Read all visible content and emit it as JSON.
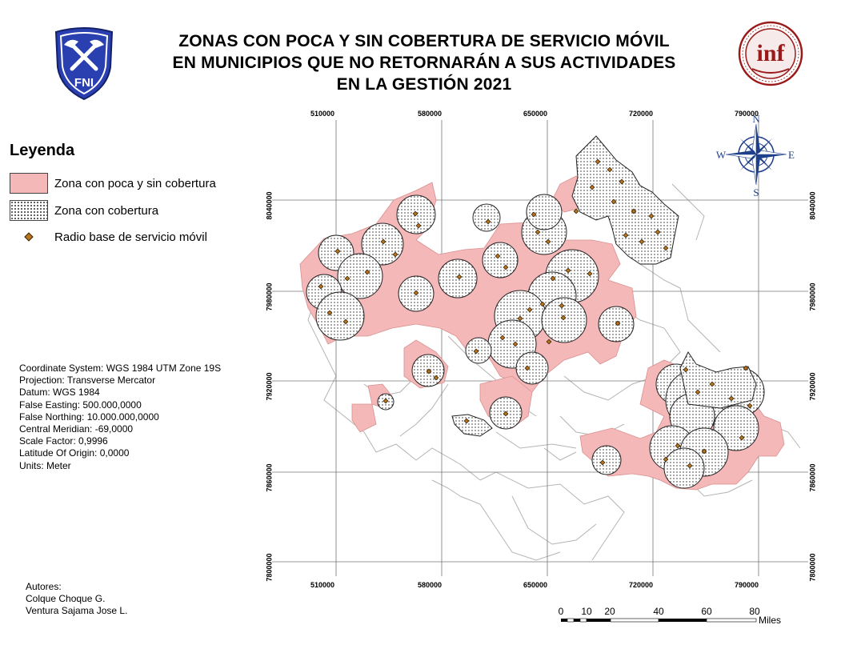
{
  "title": {
    "line1": "ZONAS CON POCA Y SIN COBERTURA DE SERVICIO MÓVIL",
    "line2": "EN MUNICIPIOS QUE NO RETORNARÁN A SUS ACTIVIDADES",
    "line3": "EN LA GESTIÓN 2021"
  },
  "logos": {
    "left_text": "FNI",
    "right_text": "inf"
  },
  "legend": {
    "title": "Leyenda",
    "items": [
      {
        "label": "Zona con poca y sin cobertura",
        "color": "#f5b8b8"
      },
      {
        "label": "Zona con cobertura",
        "pattern": "dots"
      },
      {
        "label": "Radio base de servicio móvil",
        "color": "#b8761f"
      }
    ]
  },
  "coordinate_info": [
    "Coordinate System: WGS 1984 UTM Zone 19S",
    "Projection: Transverse Mercator",
    "Datum: WGS 1984",
    "False Easting: 500.000,0000",
    "False Northing: 10.000.000,0000",
    "Central Meridian: -69,0000",
    "Scale Factor: 0,9996",
    "Latitude Of Origin: 0,0000",
    "Units: Meter"
  ],
  "authors": {
    "heading": "Autores:",
    "names": [
      "Colque Choque G.",
      "Ventura Sajama Jose  L."
    ]
  },
  "grid": {
    "eastings": [
      "510000",
      "580000",
      "650000",
      "720000",
      "790000"
    ],
    "northings": [
      "8040000",
      "7980000",
      "7920000",
      "7860000",
      "7800000"
    ]
  },
  "compass": {
    "n": "N",
    "s": "S",
    "e": "E",
    "w": "W"
  },
  "scale_bar": {
    "ticks": [
      "0",
      "10",
      "20",
      "40",
      "60",
      "80"
    ],
    "unit": "Miles"
  },
  "colors": {
    "poca_cobertura": "#f5b8b8",
    "radio_base": "#b8761f",
    "municipal_boundaries": "#b4b4b4",
    "compass_blue": "#1e3f8a",
    "logo_fni": "#2a3fb0",
    "logo_inf": "#9a1a1a"
  }
}
